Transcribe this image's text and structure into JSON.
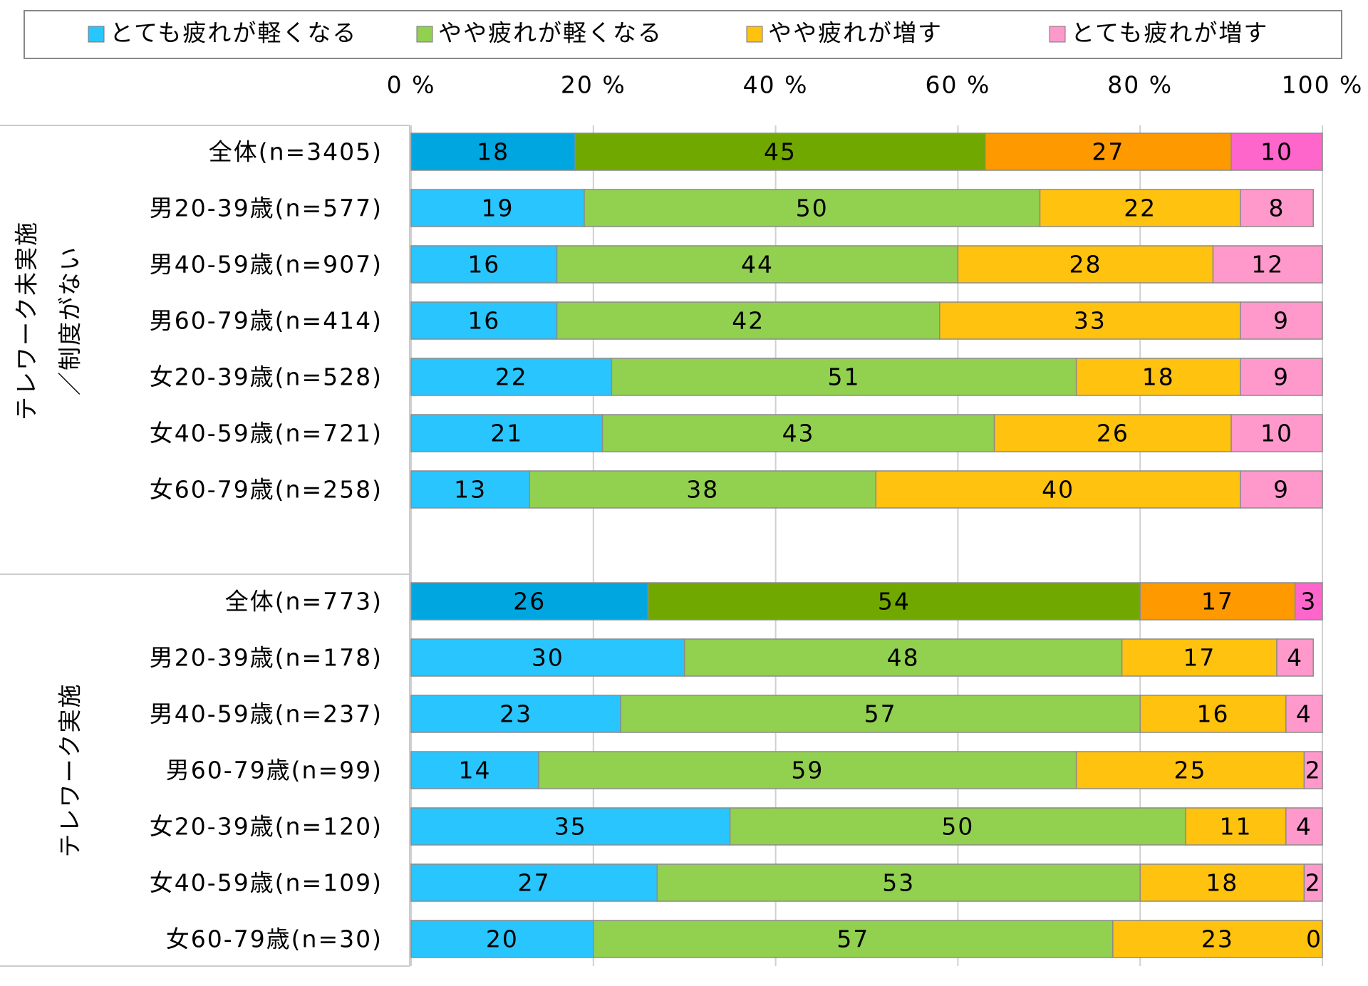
{
  "chart_data": {
    "type": "stacked-bar-horizontal",
    "xlim": [
      0,
      100
    ],
    "xticks": [
      {
        "value": 0,
        "label": "0 %"
      },
      {
        "value": 20,
        "label": "20 %"
      },
      {
        "value": 40,
        "label": "40 %"
      },
      {
        "value": 60,
        "label": "60 %"
      },
      {
        "value": 80,
        "label": "80 %"
      },
      {
        "value": 100,
        "label": "100 %"
      }
    ],
    "grid": true,
    "legend": "top",
    "groups": [
      {
        "label_lines": [
          "テレワーク未実施",
          "／制度がない"
        ],
        "categories": [
          "全体(n=3405)",
          "男20-39歳(n=577)",
          "男40-59歳(n=907)",
          "男60-79歳(n=414)",
          "女20-39歳(n=528)",
          "女40-59歳(n=721)",
          "女60-79歳(n=258)"
        ]
      },
      {
        "label_lines": [
          "テレワーク実施"
        ],
        "categories": [
          "全体(n=773)",
          "男20-39歳(n=178)",
          "男40-59歳(n=237)",
          "男60-79歳(n=99)",
          "女20-39歳(n=120)",
          "女40-59歳(n=109)",
          "女60-79歳(n=30)"
        ]
      }
    ],
    "series": [
      {
        "name": "とても疲れが軽くなる",
        "color": "#29c5ff",
        "colors": [
          [
            "#00a6e0",
            "#29c5ff",
            "#29c5ff",
            "#29c5ff",
            "#29c5ff",
            "#29c5ff",
            "#29c5ff"
          ],
          [
            "#00a6e0",
            "#29c5ff",
            "#29c5ff",
            "#29c5ff",
            "#29c5ff",
            "#29c5ff",
            "#29c5ff"
          ]
        ],
        "values": [
          [
            18,
            19,
            16,
            16,
            22,
            21,
            13
          ],
          [
            26,
            30,
            23,
            14,
            35,
            27,
            20
          ]
        ]
      },
      {
        "name": "やや疲れが軽くなる",
        "color": "#92d050",
        "colors": [
          [
            "#70a800",
            "#92d050",
            "#92d050",
            "#92d050",
            "#92d050",
            "#92d050",
            "#92d050"
          ],
          [
            "#70a800",
            "#92d050",
            "#92d050",
            "#92d050",
            "#92d050",
            "#92d050",
            "#92d050"
          ]
        ],
        "values": [
          [
            45,
            50,
            44,
            42,
            51,
            43,
            38
          ],
          [
            54,
            48,
            57,
            59,
            50,
            53,
            57
          ]
        ]
      },
      {
        "name": "やや疲れが増す",
        "color": "#ffc20e",
        "colors": [
          [
            "#ff9900",
            "#ffc20e",
            "#ffc20e",
            "#ffc20e",
            "#ffc20e",
            "#ffc20e",
            "#ffc20e"
          ],
          [
            "#ff9900",
            "#ffc20e",
            "#ffc20e",
            "#ffc20e",
            "#ffc20e",
            "#ffc20e",
            "#ffc20e"
          ]
        ],
        "values": [
          [
            27,
            22,
            28,
            33,
            18,
            26,
            40
          ],
          [
            17,
            17,
            16,
            25,
            11,
            18,
            23
          ]
        ]
      },
      {
        "name": "とても疲れが増す",
        "color": "#ff99cc",
        "colors": [
          [
            "#ff66cc",
            "#ff99cc",
            "#ff99cc",
            "#ff99cc",
            "#ff99cc",
            "#ff99cc",
            "#ff99cc"
          ],
          [
            "#ff66cc",
            "#ff99cc",
            "#ff99cc",
            "#ff99cc",
            "#ff99cc",
            "#ff99cc",
            "#ff99cc"
          ]
        ],
        "values": [
          [
            10,
            8,
            12,
            9,
            9,
            10,
            9
          ],
          [
            3,
            4,
            4,
            2,
            4,
            2,
            0
          ]
        ]
      }
    ]
  }
}
